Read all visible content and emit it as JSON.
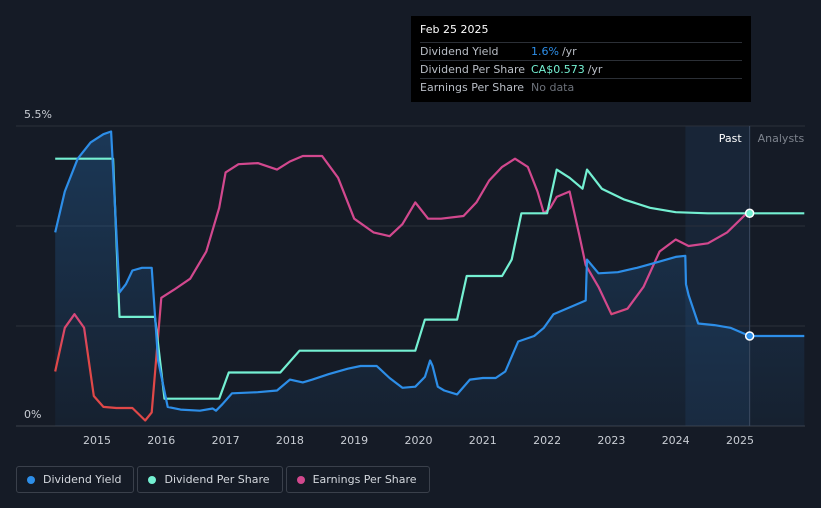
{
  "tooltip": {
    "date": "Feb 25 2025",
    "rows": [
      {
        "label": "Dividend Yield",
        "value": "1.6%",
        "unit": "/yr",
        "color": "#2d8ee8"
      },
      {
        "label": "Dividend Per Share",
        "value": "CA$0.573",
        "unit": "/yr",
        "color": "#74f0d2"
      },
      {
        "label": "Earnings Per Share",
        "value": "No data",
        "unit": "",
        "color": "#6c717a"
      }
    ]
  },
  "legend": [
    {
      "label": "Dividend Yield",
      "color": "#2d8ee8"
    },
    {
      "label": "Dividend Per Share",
      "color": "#74f0d2"
    },
    {
      "label": "Earnings Per Share",
      "color": "#d2488e"
    }
  ],
  "chart_data": {
    "type": "line",
    "y_top_label": "5.5%",
    "y_bottom_label": "0%",
    "ylim": [
      0,
      5.5
    ],
    "xlim": [
      2014.0,
      2026.0
    ],
    "x_ticks": [
      "2015",
      "2016",
      "2017",
      "2018",
      "2019",
      "2020",
      "2021",
      "2022",
      "2023",
      "2024",
      "2025"
    ],
    "region_labels": {
      "past": "Past",
      "analysts": "Analysts"
    },
    "past_end": 2025.15,
    "forecast_start": 2024.15,
    "colors": {
      "yield": "#2d8ee8",
      "dps": "#74f0d2",
      "eps": "#d2488e",
      "eps_low": "#e04848"
    },
    "series": [
      {
        "name": "Dividend Yield",
        "key": "yield",
        "x": [
          2014.35,
          2014.5,
          2014.7,
          2014.9,
          2015.1,
          2015.22,
          2015.35,
          2015.45,
          2015.55,
          2015.7,
          2015.85,
          2015.95,
          2016.1,
          2016.3,
          2016.6,
          2016.8,
          2016.85,
          2016.95,
          2017.1,
          2017.5,
          2017.8,
          2018.0,
          2018.2,
          2018.35,
          2018.6,
          2018.9,
          2019.1,
          2019.35,
          2019.55,
          2019.75,
          2019.95,
          2020.1,
          2020.18,
          2020.22,
          2020.3,
          2020.4,
          2020.6,
          2020.8,
          2021.0,
          2021.2,
          2021.35,
          2021.55,
          2021.8,
          2021.95,
          2022.1,
          2022.3,
          2022.6,
          2022.62,
          2022.8,
          2023.1,
          2023.4,
          2023.7,
          2024.0,
          2024.15,
          2024.16,
          2024.2,
          2024.35,
          2024.6,
          2024.85,
          2025.15,
          2026.0
        ],
        "values": [
          3.55,
          4.3,
          4.9,
          5.2,
          5.35,
          5.4,
          2.45,
          2.6,
          2.85,
          2.9,
          2.9,
          1.2,
          0.35,
          0.3,
          0.28,
          0.32,
          0.28,
          0.4,
          0.6,
          0.62,
          0.65,
          0.85,
          0.8,
          0.85,
          0.95,
          1.05,
          1.1,
          1.1,
          0.88,
          0.7,
          0.72,
          0.9,
          1.2,
          1.1,
          0.72,
          0.65,
          0.58,
          0.85,
          0.88,
          0.88,
          1.0,
          1.55,
          1.65,
          1.8,
          2.05,
          2.15,
          2.3,
          3.05,
          2.8,
          2.82,
          2.9,
          3.0,
          3.1,
          3.12,
          2.6,
          2.4,
          1.88,
          1.85,
          1.8,
          1.65,
          1.65
        ]
      },
      {
        "name": "Dividend Per Share",
        "key": "dps",
        "x": [
          2014.35,
          2015.25,
          2015.35,
          2015.9,
          2016.05,
          2016.85,
          2016.9,
          2017.05,
          2017.85,
          2018.15,
          2019.95,
          2020.1,
          2020.6,
          2020.75,
          2021.3,
          2021.45,
          2021.6,
          2022.0,
          2022.15,
          2022.35,
          2022.55,
          2022.62,
          2022.72,
          2022.85,
          2023.2,
          2023.6,
          2024.0,
          2024.5,
          2025.15,
          2026.0
        ],
        "values": [
          4.9,
          4.9,
          2.0,
          2.0,
          0.5,
          0.5,
          0.5,
          0.98,
          0.98,
          1.38,
          1.38,
          1.95,
          1.95,
          2.75,
          2.75,
          3.05,
          3.9,
          3.9,
          4.7,
          4.55,
          4.35,
          4.7,
          4.55,
          4.35,
          4.15,
          4.0,
          3.92,
          3.9,
          3.9,
          3.9
        ]
      },
      {
        "name": "Earnings Per Share",
        "key": "eps",
        "x": [
          2014.35,
          2014.5,
          2014.65,
          2014.8,
          2014.95,
          2015.1,
          2015.3,
          2015.55,
          2015.75,
          2015.85,
          2016.0,
          2016.2,
          2016.45,
          2016.7,
          2016.9,
          2017.0,
          2017.2,
          2017.5,
          2017.8,
          2018.0,
          2018.2,
          2018.5,
          2018.75,
          2019.0,
          2019.3,
          2019.55,
          2019.75,
          2019.95,
          2020.15,
          2020.35,
          2020.7,
          2020.9,
          2021.1,
          2021.3,
          2021.5,
          2021.7,
          2021.85,
          2021.95,
          2022.05,
          2022.15,
          2022.35,
          2022.5,
          2022.6,
          2022.8,
          2023.0,
          2023.25,
          2023.5,
          2023.75,
          2024.0,
          2024.2,
          2024.5,
          2024.8,
          2025.15
        ],
        "values": [
          1.0,
          1.8,
          2.05,
          1.8,
          0.55,
          0.35,
          0.33,
          0.33,
          0.1,
          0.25,
          2.35,
          2.5,
          2.7,
          3.2,
          4.0,
          4.65,
          4.8,
          4.82,
          4.7,
          4.85,
          4.95,
          4.95,
          4.55,
          3.8,
          3.55,
          3.48,
          3.7,
          4.1,
          3.8,
          3.8,
          3.85,
          4.1,
          4.5,
          4.75,
          4.9,
          4.75,
          4.3,
          3.9,
          4.0,
          4.2,
          4.3,
          3.5,
          2.95,
          2.55,
          2.05,
          2.15,
          2.55,
          3.2,
          3.42,
          3.3,
          3.35,
          3.55,
          3.95
        ]
      }
    ]
  }
}
